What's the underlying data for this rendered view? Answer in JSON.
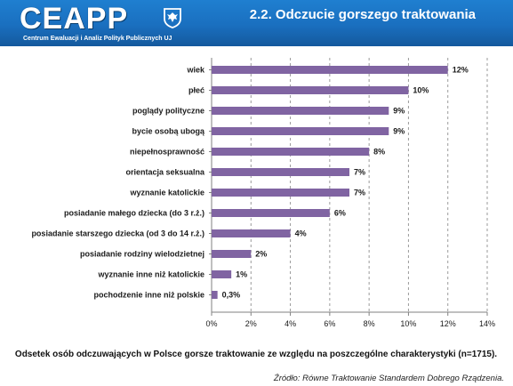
{
  "header": {
    "logo_text": "CEAPP",
    "logo_subtitle": "Centrum Ewaluacji i Analiz Polityk Publicznych UJ",
    "title": "2.2. Odczucie gorszego traktowania"
  },
  "chart_data": {
    "type": "bar",
    "orientation": "horizontal",
    "categories": [
      "wiek",
      "płeć",
      "poglądy polityczne",
      "bycie osobą ubogą",
      "niepełnosprawność",
      "orientacja seksualna",
      "wyznanie katolickie",
      "posiadanie małego dziecka (do 3 r.ż.)",
      "posiadanie starszego dziecka (od 3 do 14 r.ż.)",
      "posiadanie rodziny wielodzietnej",
      "wyznanie inne niż katolickie",
      "pochodzenie inne niż polskie"
    ],
    "values": [
      12,
      10,
      9,
      9,
      8,
      7,
      7,
      6,
      4,
      2,
      1,
      0.3
    ],
    "value_labels": [
      "12%",
      "10%",
      "9%",
      "9%",
      "8%",
      "7%",
      "7%",
      "6%",
      "4%",
      "2%",
      "1%",
      "0,3%"
    ],
    "xlim": [
      0,
      14
    ],
    "xticks": [
      "0%",
      "2%",
      "4%",
      "6%",
      "8%",
      "10%",
      "12%",
      "14%"
    ],
    "bar_color": "#8064a2",
    "grid": true,
    "title": "",
    "xlabel": "",
    "ylabel": ""
  },
  "caption": "Odsetek osób odczuwających w Polsce gorsze traktowanie ze względu na poszczególne charakterystyki (n=1715).",
  "source": "Źródło: Równe Traktowanie Standardem Dobrego Rządzenia."
}
